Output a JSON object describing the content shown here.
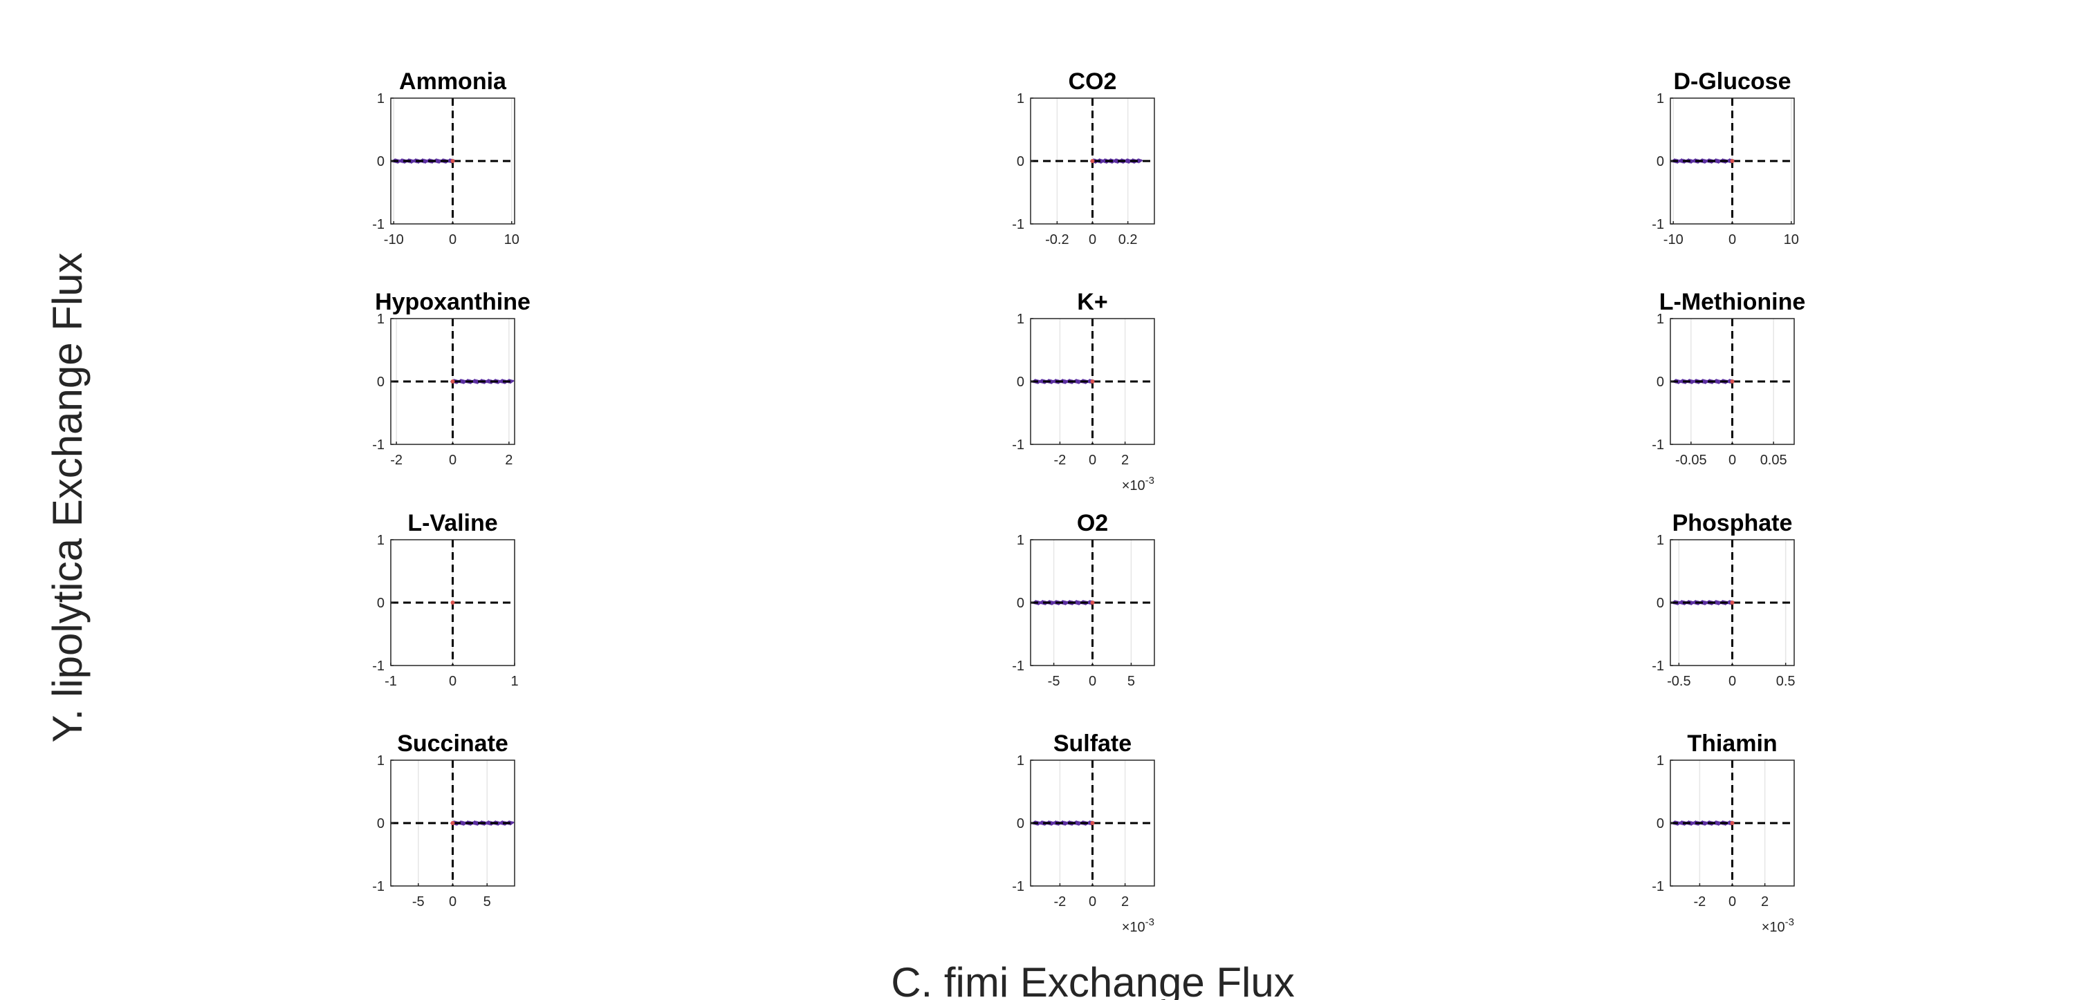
{
  "figure": {
    "xlabel": "C. fimi Exchange Flux",
    "ylabel": "Y. lipolytica Exchange Flux",
    "colors": {
      "data": "#5b2fa0",
      "origin_marker": "#d9534f",
      "axis": "#262626",
      "grid": "#e6e6e6",
      "zero_line": "#000000"
    }
  },
  "chart_data": [
    {
      "type": "scatter",
      "title": "Ammonia",
      "xlim": [
        -10.5,
        10.5
      ],
      "ylim": [
        -1,
        1
      ],
      "xticks": [
        -10,
        0,
        10
      ],
      "xtick_labels": [
        "-10",
        "0",
        "10"
      ],
      "yticks": [
        -1,
        0,
        1
      ],
      "ytick_labels": [
        "-1",
        "0",
        "1"
      ],
      "x_exponent": "",
      "x_range": [
        -10,
        0
      ],
      "y_value": 0,
      "origin_marker": true,
      "grid": "x"
    },
    {
      "type": "scatter",
      "title": "CO2",
      "xlim": [
        -0.35,
        0.35
      ],
      "ylim": [
        -1,
        1
      ],
      "xticks": [
        -0.2,
        0,
        0.2
      ],
      "xtick_labels": [
        "-0.2",
        "0",
        "0.2"
      ],
      "yticks": [
        -1,
        0,
        1
      ],
      "ytick_labels": [
        "-1",
        "0",
        "1"
      ],
      "x_exponent": "",
      "x_range": [
        0,
        0.27
      ],
      "y_value": 0,
      "origin_marker": true,
      "grid": "x"
    },
    {
      "type": "scatter",
      "title": "D-Glucose",
      "xlim": [
        -10.5,
        10.5
      ],
      "ylim": [
        -1,
        1
      ],
      "xticks": [
        -10,
        0,
        10
      ],
      "xtick_labels": [
        "-10",
        "0",
        "10"
      ],
      "yticks": [
        -1,
        0,
        1
      ],
      "ytick_labels": [
        "-1",
        "0",
        "1"
      ],
      "x_exponent": "",
      "x_range": [
        -10,
        0
      ],
      "y_value": 0,
      "origin_marker": true,
      "grid": "x"
    },
    {
      "type": "scatter",
      "title": "Hypoxanthine",
      "xlim": [
        -2.2,
        2.2
      ],
      "ylim": [
        -1,
        1
      ],
      "xticks": [
        -2,
        0,
        2
      ],
      "xtick_labels": [
        "-2",
        "0",
        "2"
      ],
      "yticks": [
        -1,
        0,
        1
      ],
      "ytick_labels": [
        "-1",
        "0",
        "1"
      ],
      "x_exponent": "",
      "x_range": [
        0,
        2.1
      ],
      "y_value": 0,
      "origin_marker": true,
      "grid": "x"
    },
    {
      "type": "scatter",
      "title": "K+",
      "xlim": [
        -3.8,
        3.8
      ],
      "ylim": [
        -1,
        1
      ],
      "xticks": [
        -2,
        0,
        2
      ],
      "xtick_labels": [
        "-2",
        "0",
        "2"
      ],
      "yticks": [
        -1,
        0,
        1
      ],
      "ytick_labels": [
        "-1",
        "0",
        "1"
      ],
      "x_exponent": "×10-3",
      "x_range": [
        -3.6,
        0
      ],
      "y_value": 0,
      "origin_marker": true,
      "grid": "x"
    },
    {
      "type": "scatter",
      "title": "L-Methionine",
      "xlim": [
        -0.075,
        0.075
      ],
      "ylim": [
        -1,
        1
      ],
      "xticks": [
        -0.05,
        0,
        0.05
      ],
      "xtick_labels": [
        "-0.05",
        "0",
        "0.05"
      ],
      "yticks": [
        -1,
        0,
        1
      ],
      "ytick_labels": [
        "-1",
        "0",
        "1"
      ],
      "x_exponent": "",
      "x_range": [
        -0.07,
        0
      ],
      "y_value": 0,
      "origin_marker": true,
      "grid": "x"
    },
    {
      "type": "scatter",
      "title": "L-Valine",
      "xlim": [
        -1,
        1
      ],
      "ylim": [
        -1,
        1
      ],
      "xticks": [
        -1,
        0,
        1
      ],
      "xtick_labels": [
        "-1",
        "0",
        "1"
      ],
      "yticks": [
        -1,
        0,
        1
      ],
      "ytick_labels": [
        "-1",
        "0",
        "1"
      ],
      "x_exponent": "",
      "x_range": null,
      "y_value": 0,
      "origin_marker": true,
      "grid": "x"
    },
    {
      "type": "scatter",
      "title": "O2",
      "xlim": [
        -8,
        8
      ],
      "ylim": [
        -1,
        1
      ],
      "xticks": [
        -5,
        0,
        5
      ],
      "xtick_labels": [
        "-5",
        "0",
        "5"
      ],
      "yticks": [
        -1,
        0,
        1
      ],
      "ytick_labels": [
        "-1",
        "0",
        "1"
      ],
      "x_exponent": "",
      "x_range": [
        -7.5,
        0
      ],
      "y_value": 0,
      "origin_marker": true,
      "grid": "x"
    },
    {
      "type": "scatter",
      "title": "Phosphate",
      "xlim": [
        -0.58,
        0.58
      ],
      "ylim": [
        -1,
        1
      ],
      "xticks": [
        -0.5,
        0,
        0.5
      ],
      "xtick_labels": [
        "-0.5",
        "0",
        "0.5"
      ],
      "yticks": [
        -1,
        0,
        1
      ],
      "ytick_labels": [
        "-1",
        "0",
        "1"
      ],
      "x_exponent": "",
      "x_range": [
        -0.55,
        0
      ],
      "y_value": 0,
      "origin_marker": true,
      "grid": "x"
    },
    {
      "type": "scatter",
      "title": "Succinate",
      "xlim": [
        -9,
        9
      ],
      "ylim": [
        -1,
        1
      ],
      "xticks": [
        -5,
        0,
        5
      ],
      "xtick_labels": [
        "-5",
        "0",
        "5"
      ],
      "yticks": [
        -1,
        0,
        1
      ],
      "ytick_labels": [
        "-1",
        "0",
        "1"
      ],
      "x_exponent": "",
      "x_range": [
        0,
        8.6
      ],
      "y_value": 0,
      "origin_marker": true,
      "grid": "x"
    },
    {
      "type": "scatter",
      "title": "Sulfate",
      "xlim": [
        -3.8,
        3.8
      ],
      "ylim": [
        -1,
        1
      ],
      "xticks": [
        -2,
        0,
        2
      ],
      "xtick_labels": [
        "-2",
        "0",
        "2"
      ],
      "yticks": [
        -1,
        0,
        1
      ],
      "ytick_labels": [
        "-1",
        "0",
        "1"
      ],
      "x_exponent": "×10-3",
      "x_range": [
        -3.6,
        0
      ],
      "y_value": 0,
      "origin_marker": true,
      "grid": "x"
    },
    {
      "type": "scatter",
      "title": "Thiamin",
      "xlim": [
        -3.8,
        3.8
      ],
      "ylim": [
        -1,
        1
      ],
      "xticks": [
        -2,
        0,
        2
      ],
      "xtick_labels": [
        "-2",
        "0",
        "2"
      ],
      "yticks": [
        -1,
        0,
        1
      ],
      "ytick_labels": [
        "-1",
        "0",
        "1"
      ],
      "x_exponent": "×10-3",
      "x_range": [
        -3.6,
        0
      ],
      "y_value": 0,
      "origin_marker": true,
      "grid": "x"
    }
  ]
}
